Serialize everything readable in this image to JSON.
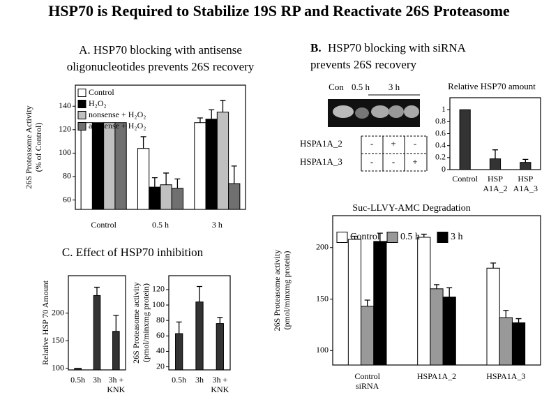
{
  "title": "HSP70 is Required to Stabilize 19S RP and Reactivate 26S Proteasome",
  "gel": {
    "lanes": [
      "Con",
      "0.5 h",
      "3 h"
    ],
    "rows": [
      {
        "label": "HSPA1A_2",
        "cells": [
          "-",
          "+",
          "-"
        ]
      },
      {
        "label": "HSPA1A_3",
        "cells": [
          "-",
          "-",
          "+"
        ]
      }
    ]
  },
  "chart_data": [
    {
      "type": "bar",
      "title": [
        "A.   HSP70 blocking with antisense",
        "oligonucleotides prevents 26S recovery"
      ],
      "ylabel": [
        "26S Proteasome Activity",
        "(% of Control)"
      ],
      "categories": [
        [
          "Control"
        ],
        [
          "0.5 h"
        ],
        [
          "3 h"
        ]
      ],
      "series": [
        {
          "name": "Control",
          "color": "#ffffff",
          "values": [
            126,
            104,
            126
          ],
          "errors": [
            null,
            10,
            4
          ]
        },
        {
          "name": "H₂O₂",
          "color": "#000000",
          "values": [
            126,
            71,
            129
          ],
          "errors": [
            null,
            8,
            8
          ]
        },
        {
          "name": "nonsense + H₂O₂",
          "color": "#c0c0c0",
          "values": [
            126,
            73,
            135
          ],
          "errors": [
            null,
            10,
            10
          ]
        },
        {
          "name": "antisense + H₂O₂",
          "color": "#707070",
          "values": [
            126,
            70,
            74
          ],
          "errors": [
            null,
            8,
            15
          ]
        }
      ],
      "ylim": [
        52,
        158
      ],
      "yticks": [
        60,
        80,
        100,
        120,
        140
      ]
    },
    {
      "type": "bar",
      "title": [
        "Relative HSP70 amount"
      ],
      "categories": [
        [
          "Control"
        ],
        [
          "HSP",
          "A1A_2"
        ],
        [
          "HSP",
          "A1A_3"
        ]
      ],
      "color": "#333333",
      "values": [
        1.0,
        0.18,
        0.12
      ],
      "errors": [
        null,
        0.15,
        0.05
      ],
      "ylim": [
        0,
        1.2
      ],
      "yticks": [
        0,
        0.2,
        0.4,
        0.6,
        0.8,
        1.0
      ]
    },
    {
      "type": "bar",
      "title": [
        "Suc-LLVY-AMC Degradation"
      ],
      "ylabel": [
        "26S Proteasome activity",
        "(pmol/minxmg protein)"
      ],
      "categories": [
        [
          "Control",
          "siRNA"
        ],
        [
          "HSPA1A_2"
        ],
        [
          "HSPA1A_3"
        ]
      ],
      "series": [
        {
          "name": "Control",
          "color": "#ffffff",
          "values": [
            208,
            210,
            180
          ],
          "errors": [
            3,
            3,
            5
          ]
        },
        {
          "name": "0.5 h",
          "color": "#999999",
          "values": [
            143,
            160,
            132
          ],
          "errors": [
            6,
            4,
            7
          ]
        },
        {
          "name": "3 h",
          "color": "#000000",
          "values": [
            206,
            152,
            127
          ],
          "errors": [
            8,
            9,
            4
          ]
        }
      ],
      "ylim": [
        86,
        231
      ],
      "yticks": [
        100,
        150,
        200
      ]
    },
    {
      "type": "bar",
      "title": [
        "C.   Effect of HSP70 inhibition"
      ],
      "ylabel": [
        "Relative HSP 70 Amount"
      ],
      "categories": [
        [
          "0.5h"
        ],
        [
          "3h"
        ],
        [
          "3h +",
          "KNK"
        ]
      ],
      "color": "#333333",
      "values": [
        100,
        232,
        167
      ],
      "errors": [
        null,
        15,
        29
      ],
      "ylim": [
        97,
        268
      ],
      "yticks": [
        100,
        150,
        200
      ]
    },
    {
      "type": "bar",
      "ylabel": [
        "26S Proteasome activity",
        "(pmol/minxmg protein)"
      ],
      "categories": [
        [
          "0.5h"
        ],
        [
          "3h"
        ],
        [
          "3h +",
          "KNK"
        ]
      ],
      "color": "#333333",
      "values": [
        63,
        104,
        76
      ],
      "errors": [
        15,
        20,
        8
      ],
      "ylim": [
        16,
        138
      ],
      "yticks": [
        20,
        40,
        60,
        80,
        100,
        120
      ]
    }
  ]
}
